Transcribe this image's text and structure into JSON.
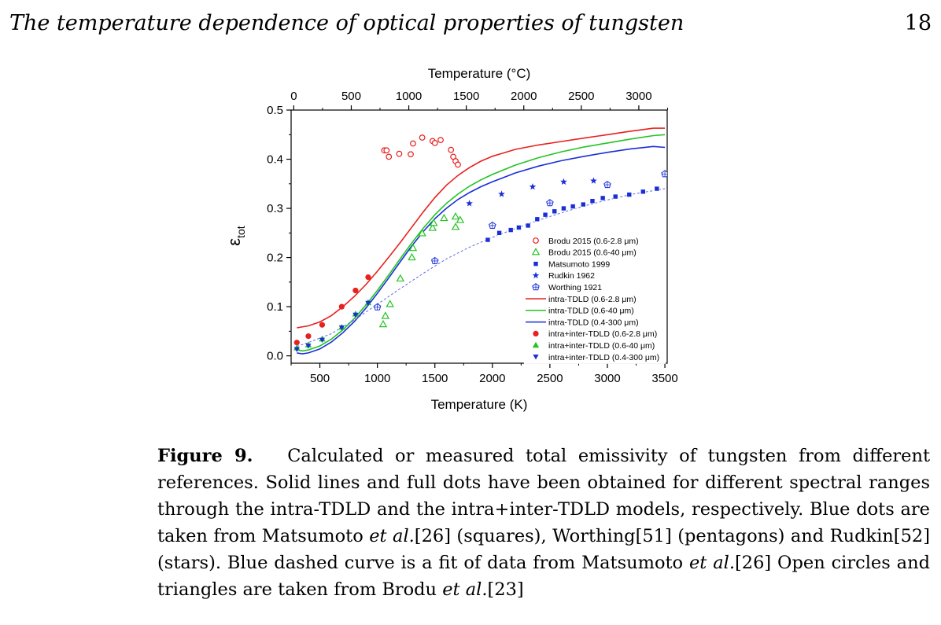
{
  "header": {
    "title": "The temperature dependence of optical properties of tungsten",
    "page_number": "18"
  },
  "caption": {
    "label": "Figure 9.",
    "parts": [
      "Calculated or measured total emissivity of tungsten from different references. Solid lines and full dots have been obtained for different spectral ranges through the intra-TDLD and the intra+inter-TDLD models, respectively. Blue dots are taken from Matsumoto ",
      "et al.",
      "[26] (squares), Worthing[51] (pentagons) and Rudkin[52] (stars). Blue dashed curve is a fit of data from Matsumoto ",
      "et al.",
      "[26] Open circles and triangles are taken from Brodu ",
      "et al.",
      "[23]"
    ]
  },
  "chart_data": {
    "type": "scatter",
    "title": "",
    "xlabel": "Temperature (K)",
    "x2label": "Temperature (°C)",
    "ylabel_main": "ε",
    "ylabel_sub": "tot",
    "xlim": [
      250,
      3520
    ],
    "ylim": [
      -0.015,
      0.5
    ],
    "x_ticks": [
      500,
      1000,
      1500,
      2000,
      2500,
      3000,
      3500
    ],
    "x2_ticks": [
      0,
      500,
      1000,
      1500,
      2000,
      2500,
      3000
    ],
    "y_ticks": [
      0.0,
      0.1,
      0.2,
      0.3,
      0.4,
      0.5
    ],
    "y_tick_labels": [
      "0.0",
      "0.1",
      "0.2",
      "0.3",
      "0.4",
      "0.5"
    ],
    "legend_position": "lower-right",
    "series": [
      {
        "name": "Brodu 2015 (0.6-2.8 μm)",
        "kind": "scatter",
        "marker": "circle-open",
        "color": "#e8201e",
        "x": [
          1060,
          1080,
          1100,
          1190,
          1290,
          1310,
          1390,
          1480,
          1500,
          1550,
          1640,
          1660,
          1680,
          1700
        ],
        "y": [
          0.418,
          0.418,
          0.405,
          0.411,
          0.41,
          0.432,
          0.444,
          0.437,
          0.433,
          0.439,
          0.419,
          0.405,
          0.396,
          0.389
        ]
      },
      {
        "name": "Brodu 2015 (0.6-40 μm)",
        "kind": "scatter",
        "marker": "triangle-open",
        "color": "#22c422",
        "x": [
          1050,
          1070,
          1110,
          1200,
          1300,
          1310,
          1390,
          1480,
          1490,
          1580,
          1680,
          1680,
          1720
        ],
        "y": [
          0.064,
          0.081,
          0.105,
          0.157,
          0.2,
          0.219,
          0.249,
          0.26,
          0.27,
          0.28,
          0.262,
          0.283,
          0.276
        ]
      },
      {
        "name": "Matsumoto 1999",
        "kind": "scatter",
        "marker": "square",
        "color": "#1a2ed8",
        "x": [
          1960,
          2060,
          2160,
          2230,
          2310,
          2390,
          2460,
          2540,
          2620,
          2700,
          2790,
          2870,
          2960,
          3070,
          3190,
          3310,
          3430
        ],
        "y": [
          0.236,
          0.25,
          0.256,
          0.261,
          0.265,
          0.278,
          0.287,
          0.294,
          0.3,
          0.304,
          0.308,
          0.315,
          0.321,
          0.324,
          0.328,
          0.334,
          0.34
        ]
      },
      {
        "name": "Rudkin 1962",
        "kind": "scatter",
        "marker": "star",
        "color": "#1a2ed8",
        "x": [
          1800,
          2080,
          2350,
          2620,
          2880
        ],
        "y": [
          0.31,
          0.329,
          0.344,
          0.354,
          0.356
        ]
      },
      {
        "name": "Worthing 1921",
        "kind": "scatter",
        "marker": "pentagon-open",
        "color": "#1a2ed8",
        "x": [
          1000,
          1500,
          2000,
          2500,
          3000,
          3500
        ],
        "y": [
          0.099,
          0.193,
          0.265,
          0.311,
          0.348,
          0.37
        ]
      },
      {
        "name": "intra-TDLD (0.6-2.8 μm)",
        "kind": "line",
        "color": "#e8201e",
        "x": [
          300,
          400,
          500,
          600,
          700,
          800,
          900,
          1000,
          1100,
          1200,
          1300,
          1400,
          1500,
          1600,
          1700,
          1800,
          1900,
          2000,
          2200,
          2400,
          2600,
          2800,
          3000,
          3200,
          3400,
          3500
        ],
        "y": [
          0.057,
          0.061,
          0.069,
          0.082,
          0.1,
          0.121,
          0.145,
          0.172,
          0.201,
          0.231,
          0.262,
          0.293,
          0.322,
          0.347,
          0.367,
          0.383,
          0.396,
          0.406,
          0.42,
          0.429,
          0.436,
          0.443,
          0.45,
          0.457,
          0.463,
          0.463
        ]
      },
      {
        "name": "intra-TDLD (0.6-40 μm)",
        "kind": "line",
        "color": "#22c422",
        "x": [
          300,
          350,
          400,
          500,
          600,
          700,
          800,
          900,
          1000,
          1100,
          1200,
          1300,
          1400,
          1500,
          1600,
          1700,
          1800,
          1900,
          2000,
          2200,
          2400,
          2600,
          2800,
          3000,
          3200,
          3400,
          3500
        ],
        "y": [
          0.012,
          0.01,
          0.012,
          0.02,
          0.034,
          0.053,
          0.076,
          0.103,
          0.133,
          0.165,
          0.198,
          0.23,
          0.26,
          0.287,
          0.31,
          0.329,
          0.345,
          0.358,
          0.369,
          0.388,
          0.403,
          0.415,
          0.425,
          0.433,
          0.441,
          0.448,
          0.45
        ]
      },
      {
        "name": "intra-TDLD (0.4-300 μm)",
        "kind": "line",
        "color": "#1a2ed8",
        "x": [
          300,
          350,
          400,
          500,
          600,
          700,
          800,
          900,
          1000,
          1100,
          1200,
          1300,
          1400,
          1500,
          1600,
          1700,
          1800,
          1900,
          2000,
          2200,
          2400,
          2600,
          2800,
          3000,
          3200,
          3400,
          3500
        ],
        "y": [
          0.006,
          0.004,
          0.006,
          0.014,
          0.028,
          0.047,
          0.07,
          0.097,
          0.127,
          0.159,
          0.192,
          0.224,
          0.253,
          0.279,
          0.3,
          0.318,
          0.332,
          0.344,
          0.354,
          0.372,
          0.386,
          0.397,
          0.406,
          0.414,
          0.421,
          0.426,
          0.424
        ]
      },
      {
        "name": "intra+inter-TDLD (0.6-2.8 μm)",
        "kind": "scatter",
        "marker": "circle-filled",
        "color": "#e8201e",
        "x": [
          300,
          400,
          520,
          690,
          810,
          920
        ],
        "y": [
          0.027,
          0.04,
          0.063,
          0.1,
          0.133,
          0.16
        ]
      },
      {
        "name": "intra+inter-TDLD (0.6-40 μm)",
        "kind": "scatter",
        "marker": "triangle-filled",
        "color": "#22c422",
        "x": [
          300,
          400,
          520,
          690,
          810,
          920
        ],
        "y": [
          0.016,
          0.022,
          0.034,
          0.058,
          0.085,
          0.108
        ]
      },
      {
        "name": "intra+inter-TDLD (0.4-300 μm)",
        "kind": "scatter",
        "marker": "triangle-down-filled",
        "color": "#1a2ed8",
        "x": [
          300,
          400,
          520,
          690,
          810,
          920
        ],
        "y": [
          0.013,
          0.02,
          0.032,
          0.057,
          0.083,
          0.107
        ]
      },
      {
        "name": "",
        "kind": "line",
        "style": "dashed",
        "color": "#5a6ae8",
        "x": [
          300,
          400,
          600,
          800,
          1000,
          1200,
          1400,
          1600,
          1800,
          2000,
          2200,
          2400,
          2600,
          2800,
          3000,
          3200,
          3500
        ],
        "y": [
          0.019,
          0.027,
          0.045,
          0.073,
          0.105,
          0.137,
          0.168,
          0.197,
          0.221,
          0.241,
          0.259,
          0.276,
          0.291,
          0.305,
          0.317,
          0.328,
          0.34
        ]
      }
    ]
  }
}
